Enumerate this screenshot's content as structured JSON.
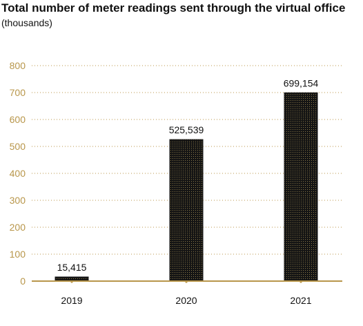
{
  "chart_data": {
    "type": "bar",
    "title": "Total number of meter readings sent through the virtual office",
    "subtitle": "(thousands)",
    "categories": [
      "2019",
      "2020",
      "2021"
    ],
    "values": [
      15.415,
      525.539,
      699.154
    ],
    "data_labels": [
      "15,415",
      "525,539",
      "699,154"
    ],
    "ylim": [
      0,
      800
    ],
    "yticks": [
      0,
      100,
      200,
      300,
      400,
      500,
      600,
      700,
      800
    ],
    "ytick_labels": [
      "0",
      "100",
      "200",
      "300",
      "400",
      "500",
      "600",
      "700",
      "800"
    ],
    "grid": true,
    "xlabel": "",
    "ylabel": "",
    "colors": {
      "bar_fill": "#141414",
      "bar_dots": "#8c7a4a",
      "axis": "#b8964a",
      "gridline": "#b8964a",
      "tick_label": "#b8964a",
      "text": "#111111"
    }
  }
}
